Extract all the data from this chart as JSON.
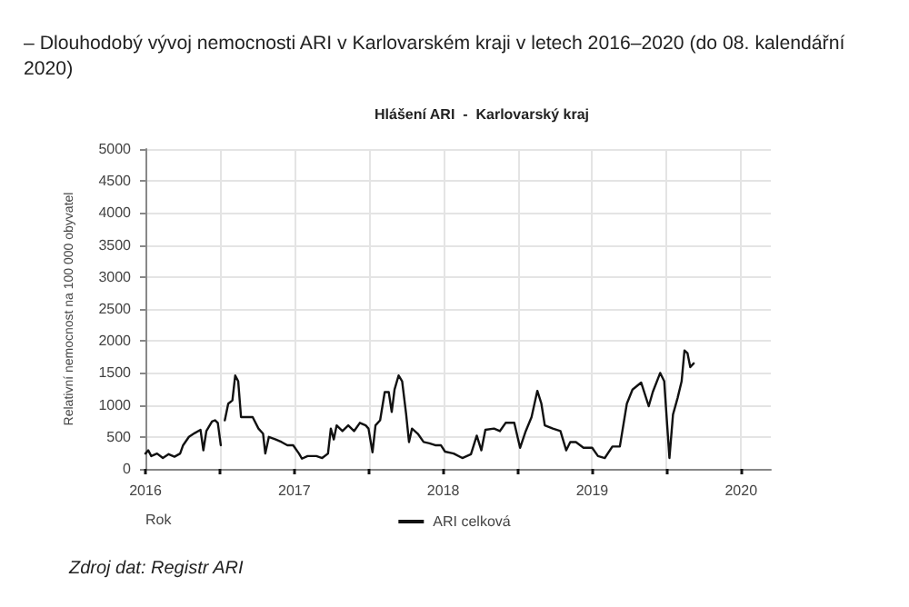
{
  "chart_data": {
    "type": "line",
    "title": "– Dlouhodobý vývoj nemocnosti ARI v Karlovarském kraji v letech 2016–2020 (do 08. kalendářní\n2020)",
    "subtitle": "Hlášení ARI  -  Karlovarský kraj",
    "xlabel": "Rok",
    "ylabel": "Relativní nemocnost na 100 000 obyvatel",
    "annotations": [
      "Zdroj dat: Registr ARI"
    ],
    "x": [
      2016.0,
      2016.019,
      2016.039,
      2016.078,
      2016.117,
      2016.156,
      2016.195,
      2016.233,
      2016.253,
      2016.292,
      2016.331,
      2016.37,
      2016.389,
      2016.409,
      2016.447,
      2016.467,
      2016.486,
      2016.506,
      2016.52,
      2016.533,
      2016.556,
      2016.584,
      2016.603,
      2016.623,
      2016.642,
      2016.681,
      2016.72,
      2016.759,
      2016.79,
      2016.805,
      2016.829,
      2016.875,
      2016.914,
      2016.953,
      2016.992,
      2017.031,
      2017.051,
      2017.089,
      2017.148,
      2017.187,
      2017.226,
      2017.245,
      2017.265,
      2017.284,
      2017.323,
      2017.362,
      2017.401,
      2017.44,
      2017.479,
      2017.498,
      2017.525,
      2017.545,
      2017.576,
      2017.607,
      2017.634,
      2017.654,
      2017.673,
      2017.7,
      2017.724,
      2017.751,
      2017.77,
      2017.79,
      2017.829,
      2017.868,
      2017.907,
      2017.946,
      2017.984,
      2018.012,
      2018.07,
      2018.128,
      2018.186,
      2018.225,
      2018.256,
      2018.283,
      2018.341,
      2018.38,
      2018.419,
      2018.477,
      2018.516,
      2018.554,
      2018.593,
      2018.632,
      2018.659,
      2018.682,
      2018.736,
      2018.787,
      2018.826,
      2018.853,
      2018.891,
      2018.942,
      2019.0,
      2019.039,
      2019.085,
      2019.136,
      2019.186,
      2019.233,
      2019.271,
      2019.329,
      2019.38,
      2019.407,
      2019.457,
      2019.484,
      2019.504,
      2019.519,
      2019.543,
      2019.574,
      2019.601,
      2019.62,
      2019.64,
      2019.659,
      2019.682
    ],
    "series": [
      {
        "name": "ARI celková",
        "color": "#111111",
        "values": [
          240,
          290,
          200,
          240,
          170,
          230,
          190,
          240,
          370,
          500,
          560,
          610,
          290,
          590,
          740,
          760,
          720,
          370,
          null,
          760,
          1020,
          1070,
          1460,
          1370,
          810,
          810,
          810,
          630,
          550,
          240,
          500,
          460,
          420,
          370,
          370,
          240,
          160,
          200,
          200,
          170,
          240,
          630,
          460,
          680,
          590,
          680,
          590,
          720,
          680,
          630,
          260,
          680,
          760,
          1200,
          1200,
          890,
          1240,
          1460,
          1370,
          850,
          420,
          630,
          550,
          420,
          400,
          370,
          370,
          270,
          240,
          170,
          230,
          520,
          290,
          610,
          630,
          590,
          720,
          720,
          330,
          590,
          810,
          1220,
          1020,
          680,
          630,
          590,
          290,
          420,
          420,
          330,
          330,
          200,
          170,
          350,
          350,
          1020,
          1240,
          1350,
          980,
          1200,
          1500,
          1370,
          680,
          170,
          850,
          1110,
          1370,
          1850,
          1810,
          1590,
          1650
        ]
      }
    ],
    "xlim": [
      2016,
      2020.2
    ],
    "xticks": [
      2016,
      {
        "value": 2016.5,
        "label": null
      },
      2017,
      {
        "value": 2017.5,
        "label": null
      },
      2018,
      {
        "value": 2018.5,
        "label": null
      },
      2019,
      {
        "value": 2019.5,
        "label": null
      },
      2020
    ],
    "ylim": [
      0,
      5000
    ],
    "yticks": [
      0,
      500,
      1000,
      1500,
      2000,
      2500,
      3000,
      3500,
      4000,
      4500,
      5000
    ],
    "grid": true,
    "legend": "bottom",
    "marker": "none",
    "line_style": "solid"
  }
}
